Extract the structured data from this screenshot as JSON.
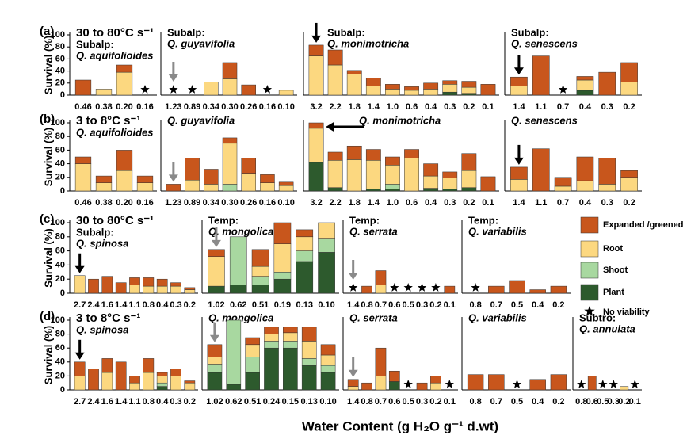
{
  "chart_data": {
    "type": "stacked-bar",
    "ylabel": "Survival (%)",
    "xlabel": "Water Content (g H₂O g⁻¹ d.wt)",
    "ylim": [
      0,
      100
    ],
    "yticks": [
      0,
      20,
      40,
      60,
      80,
      100
    ],
    "series": [
      {
        "name": "Expanded /greened",
        "color": "#c8561c"
      },
      {
        "name": "Root",
        "color": "#fcd880"
      },
      {
        "name": "Shoot",
        "color": "#a8d8a0"
      },
      {
        "name": "Plant",
        "color": "#2d5a2d"
      }
    ],
    "no_viability_label": "No viability",
    "rows": [
      {
        "label": "(a)",
        "rate": "30 to 80°C s⁻¹",
        "panels": [
          {
            "group": "Subalp:",
            "species": "Q. aquifolioides",
            "categories": [
              "0.46",
              "0.38",
              "0.20",
              "0.16"
            ],
            "values": [
              [
                25,
                0,
                0,
                0
              ],
              [
                0,
                10,
                0,
                0
              ],
              [
                12,
                38,
                0,
                0
              ],
              null
            ]
          },
          {
            "group": "Subalp:",
            "species": "Q. guyavifolia",
            "categories": [
              "1.23",
              "0.89",
              "0.34",
              "0.30",
              "0.26",
              "0.16",
              "0.10"
            ],
            "values": [
              null,
              null,
              [
                0,
                22,
                0,
                0
              ],
              [
                27,
                27,
                0,
                0
              ],
              [
                17,
                0,
                0,
                0
              ],
              null,
              [
                0,
                8,
                0,
                0
              ]
            ],
            "arrow": {
              "index": 0,
              "color": "#8a8a8a"
            }
          },
          {
            "group": "Subalp:",
            "species": "Q. monimotricha",
            "categories": [
              "3.2",
              "2.2",
              "1.8",
              "1.4",
              "1.0",
              "0.6",
              "0.4",
              "0.3",
              "0.2",
              "0.1"
            ],
            "values": [
              [
                18,
                65,
                0,
                0
              ],
              [
                25,
                50,
                0,
                0
              ],
              [
                6,
                35,
                0,
                0
              ],
              [
                13,
                15,
                0,
                0
              ],
              [
                8,
                10,
                0,
                0
              ],
              [
                6,
                8,
                0,
                0
              ],
              [
                10,
                10,
                0,
                0
              ],
              [
                6,
                13,
                0,
                5
              ],
              [
                10,
                10,
                0,
                3
              ],
              [
                18,
                0,
                0,
                0
              ]
            ],
            "arrow": {
              "index": 0,
              "color": "#000"
            }
          },
          {
            "group": "Subalp:",
            "species": "Q. senescens",
            "categories": [
              "1.4",
              "1.1",
              "0.7",
              "0.4",
              "0.3",
              "0.2"
            ],
            "values": [
              [
                15,
                15,
                0,
                0
              ],
              [
                65,
                0,
                0,
                0
              ],
              null,
              [
                6,
                17,
                0,
                8
              ],
              [
                38,
                0,
                0,
                0
              ],
              [
                32,
                22,
                0,
                0
              ]
            ],
            "arrow": {
              "index": 0,
              "color": "#000"
            }
          }
        ]
      },
      {
        "label": "(b)",
        "rate": "3 to 8°C s⁻¹",
        "panels": [
          {
            "species": "Q. aquifolioides",
            "categories": [
              "0.46",
              "0.38",
              "0.20",
              "0.16"
            ],
            "values": [
              [
                10,
                40,
                0,
                0
              ],
              [
                10,
                12,
                0,
                0
              ],
              [
                30,
                30,
                0,
                0
              ],
              [
                10,
                12,
                0,
                0
              ]
            ]
          },
          {
            "species": "Q. guyavifolia",
            "categories": [
              "1.23",
              "0.89",
              "0.34",
              "0.30",
              "0.26",
              "0.16",
              "0.10"
            ],
            "values": [
              [
                10,
                0,
                0,
                0
              ],
              [
                32,
                16,
                0,
                0
              ],
              [
                22,
                10,
                0,
                0
              ],
              [
                8,
                60,
                10,
                0
              ],
              [
                22,
                26,
                0,
                0
              ],
              [
                12,
                12,
                0,
                0
              ],
              [
                5,
                8,
                0,
                0
              ]
            ],
            "arrow": {
              "index": 0,
              "color": "#8a8a8a"
            }
          },
          {
            "species": "Q. monimotricha",
            "categories": [
              "3.2",
              "2.2",
              "1.8",
              "1.4",
              "1.0",
              "0.6",
              "0.4",
              "0.3",
              "0.2",
              "0.1"
            ],
            "values": [
              [
                8,
                50,
                0,
                42
              ],
              [
                12,
                40,
                0,
                5
              ],
              [
                20,
                46,
                0,
                0
              ],
              [
                16,
                42,
                0,
                3
              ],
              [
                12,
                28,
                7,
                3
              ],
              [
                13,
                48,
                0,
                0
              ],
              [
                18,
                18,
                0,
                4
              ],
              [
                9,
                16,
                0,
                3
              ],
              [
                25,
                25,
                0,
                5
              ],
              [
                21,
                0,
                0,
                0
              ]
            ],
            "arrow": {
              "index": 0,
              "color": "#000",
              "direction": "left"
            }
          },
          {
            "species": "Q. senescens",
            "categories": [
              "1.4",
              "1.1",
              "0.7",
              "0.4",
              "0.3",
              "0.2"
            ],
            "values": [
              [
                18,
                17,
                0,
                0
              ],
              [
                62,
                0,
                0,
                0
              ],
              [
                13,
                7,
                0,
                0
              ],
              [
                35,
                15,
                0,
                0
              ],
              [
                38,
                10,
                0,
                0
              ],
              [
                10,
                20,
                0,
                0
              ]
            ],
            "arrow": {
              "index": 0,
              "color": "#000"
            }
          }
        ]
      },
      {
        "label": "(c)",
        "rate": "30 to 80°C s⁻¹",
        "panels": [
          {
            "group": "Subalp:",
            "species": "Q. spinosa",
            "categories": [
              "2.7",
              "2.4",
              "1.6",
              "1.4",
              "1.1",
              "0.8",
              "0.4",
              "0.3",
              "0.2"
            ],
            "values": [
              [
                0,
                25,
                0,
                0
              ],
              [
                20,
                0,
                0,
                0
              ],
              [
                24,
                0,
                0,
                0
              ],
              [
                15,
                0,
                0,
                0
              ],
              [
                10,
                12,
                0,
                0
              ],
              [
                12,
                10,
                0,
                0
              ],
              [
                10,
                10,
                0,
                0
              ],
              [
                5,
                10,
                0,
                0
              ],
              [
                3,
                5,
                0,
                0
              ]
            ],
            "arrow": {
              "index": 0,
              "color": "#000"
            }
          },
          {
            "group": "Temp:",
            "species": "Q. mongolica",
            "categories": [
              "1.02",
              "0.62",
              "0.51",
              "0.19",
              "0.13",
              "0.10"
            ],
            "values": [
              [
                10,
                42,
                0,
                10
              ],
              [
                0,
                0,
                68,
                12
              ],
              [
                24,
                14,
                12,
                12
              ],
              [
                30,
                40,
                10,
                20
              ],
              [
                10,
                20,
                15,
                45
              ],
              [
                0,
                22,
                20,
                58
              ]
            ],
            "arrow": {
              "index": 0,
              "color": "#8a8a8a"
            }
          },
          {
            "group": "Temp:",
            "species": "Q. serrata",
            "categories": [
              "1.4",
              "0.8",
              "0.7",
              "0.6",
              "0.5",
              "0.3",
              "0.2",
              "0.1"
            ],
            "values": [
              null,
              [
                10,
                0,
                0,
                0
              ],
              [
                20,
                12,
                0,
                0
              ],
              null,
              null,
              null,
              null,
              [
                10,
                0,
                0,
                0
              ]
            ],
            "arrow": {
              "index": 0,
              "color": "#8a8a8a"
            }
          },
          {
            "group": "Temp:",
            "species": "Q. variabilis",
            "categories": [
              "0.8",
              "0.7",
              "0.5",
              "0.4",
              "0.2"
            ],
            "values": [
              null,
              [
                10,
                0,
                0,
                0
              ],
              [
                18,
                0,
                0,
                0
              ],
              [
                5,
                0,
                0,
                0
              ],
              [
                10,
                0,
                0,
                0
              ]
            ]
          }
        ]
      },
      {
        "label": "(d)",
        "rate": "3 to 8°C s⁻¹",
        "panels": [
          {
            "species": "Q. spinosa",
            "categories": [
              "2.7",
              "2.4",
              "1.6",
              "1.4",
              "1.1",
              "0.8",
              "0.4",
              "0.3",
              "0.2"
            ],
            "values": [
              [
                20,
                20,
                0,
                0
              ],
              [
                30,
                0,
                0,
                0
              ],
              [
                20,
                25,
                0,
                0
              ],
              [
                40,
                0,
                0,
                0
              ],
              [
                10,
                10,
                0,
                0
              ],
              [
                20,
                25,
                0,
                0
              ],
              [
                5,
                10,
                5,
                5
              ],
              [
                10,
                20,
                0,
                0
              ],
              [
                3,
                10,
                0,
                0
              ]
            ],
            "arrow": {
              "index": 0,
              "color": "#000"
            }
          },
          {
            "species": "Q. mongolica",
            "categories": [
              "1.02",
              "0.62",
              "0.51",
              "0.24",
              "0.15",
              "0.13",
              "0.10"
            ],
            "values": [
              [
                18,
                10,
                12,
                25
              ],
              [
                0,
                0,
                92,
                8
              ],
              [
                10,
                18,
                22,
                25
              ],
              [
                10,
                10,
                10,
                60
              ],
              [
                8,
                12,
                10,
                60
              ],
              [
                20,
                25,
                10,
                35
              ],
              [
                15,
                15,
                10,
                25
              ]
            ],
            "arrow": {
              "index": 0,
              "color": "#8a8a8a"
            }
          },
          {
            "species": "Q. serrata",
            "categories": [
              "1.4",
              "0.8",
              "0.7",
              "0.6",
              "0.5",
              "0.3",
              "0.2",
              "0.1"
            ],
            "values": [
              [
                10,
                5,
                0,
                0
              ],
              [
                10,
                0,
                0,
                0
              ],
              [
                40,
                20,
                0,
                0
              ],
              [
                15,
                0,
                0,
                12
              ],
              null,
              [
                10,
                0,
                0,
                0
              ],
              [
                10,
                10,
                0,
                0
              ],
              null
            ],
            "arrow": {
              "index": 0,
              "color": "#8a8a8a"
            }
          },
          {
            "species": "Q. variabilis",
            "categories": [
              "0.8",
              "0.7",
              "0.5",
              "0.4",
              "0.2"
            ],
            "values": [
              [
                22,
                0,
                0,
                0
              ],
              [
                22,
                0,
                0,
                0
              ],
              null,
              [
                15,
                0,
                0,
                0
              ],
              [
                22,
                0,
                0,
                0
              ]
            ]
          },
          {
            "group": "Subtro:",
            "species": "Q. annulata",
            "categories": [
              "0.8",
              "0.6",
              "0.5",
              "0.3",
              "0.2",
              "0.1"
            ],
            "values": [
              null,
              [
                20,
                0,
                0,
                0
              ],
              null,
              null,
              [
                0,
                5,
                0,
                0
              ],
              null
            ]
          }
        ]
      }
    ]
  }
}
